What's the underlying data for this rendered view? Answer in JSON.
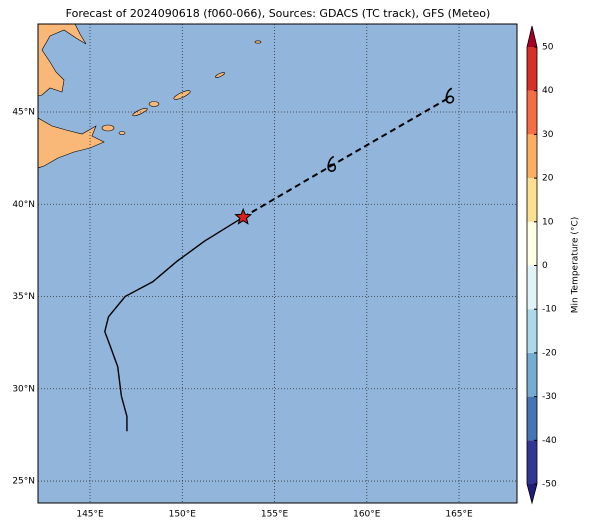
{
  "chart_data": {
    "type": "map",
    "title": "Forecast of 2024090618 (f060-066), Sources: GDACS (TC track), GFS (Meteo)",
    "xlim": [
      142.18,
      168.14
    ],
    "ylim": [
      23.81,
      49.77
    ],
    "xticks": [
      {
        "value": 145,
        "label": "145°E"
      },
      {
        "value": 150,
        "label": "150°E"
      },
      {
        "value": 155,
        "label": "155°E"
      },
      {
        "value": 160,
        "label": "160°E"
      },
      {
        "value": 165,
        "label": "165°E"
      }
    ],
    "yticks": [
      {
        "value": 25,
        "label": "25°N"
      },
      {
        "value": 30,
        "label": "30°N"
      },
      {
        "value": 35,
        "label": "35°N"
      },
      {
        "value": 40,
        "label": "40°N"
      },
      {
        "value": 45,
        "label": "45°N"
      }
    ],
    "grid": true,
    "track": {
      "color": "#000000",
      "lon": [
        147.0,
        147.0,
        146.7,
        146.5,
        146.1,
        145.8,
        146.0,
        146.9,
        148.4,
        149.7,
        151.2,
        153.3
      ],
      "lat": [
        27.7,
        28.5,
        29.6,
        31.2,
        32.3,
        33.1,
        33.9,
        35.0,
        35.8,
        36.9,
        38.0,
        39.3
      ]
    },
    "forecast": {
      "color": "#000000",
      "lon": [
        153.3,
        158.1,
        164.5
      ],
      "lat": [
        39.3,
        42.1,
        45.8
      ]
    },
    "current_marker_color": "#dd1c1c",
    "colorbar": {
      "label": "Min Temperature (°C)",
      "ticks": [
        -50,
        -40,
        -30,
        -20,
        -10,
        0,
        10,
        20,
        30,
        40,
        50
      ],
      "colors": [
        "#313695",
        "#4575b4",
        "#74add1",
        "#abd9e9",
        "#e0f3f8",
        "#ffffe5",
        "#fee090",
        "#fdae61",
        "#f46d43",
        "#d73027"
      ],
      "under_color": "#1f1f7a",
      "over_color": "#a50026"
    }
  }
}
